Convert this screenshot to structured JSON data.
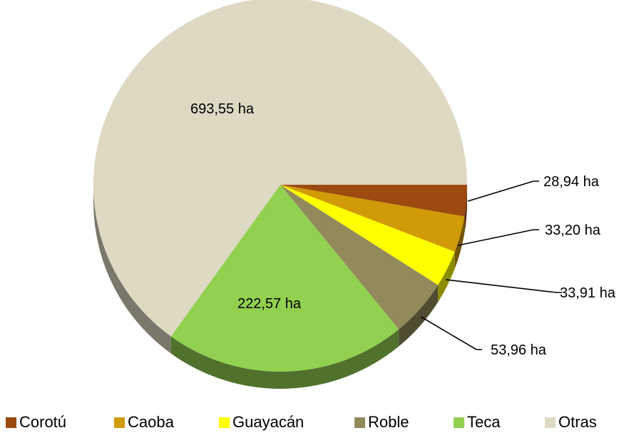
{
  "chart_data": {
    "type": "pie",
    "title": "",
    "unit": "ha",
    "legend_position": "bottom",
    "slices": [
      {
        "name": "Corotú",
        "value": 28.94,
        "label": "28,94 ha",
        "color": "#9c4a0f"
      },
      {
        "name": "Caoba",
        "value": 33.2,
        "label": "33,20 ha",
        "color": "#d19a07"
      },
      {
        "name": "Guayacán",
        "value": 33.91,
        "label": "33,91 ha",
        "color": "#ffff00"
      },
      {
        "name": "Roble",
        "value": 53.96,
        "label": "53,96 ha",
        "color": "#928a5b"
      },
      {
        "name": "Teca",
        "value": 222.57,
        "label": "222,57 ha",
        "color": "#92d050"
      },
      {
        "name": "Otras",
        "value": 693.55,
        "label": "693,55 ha",
        "color": "#ddd9c3"
      }
    ]
  }
}
